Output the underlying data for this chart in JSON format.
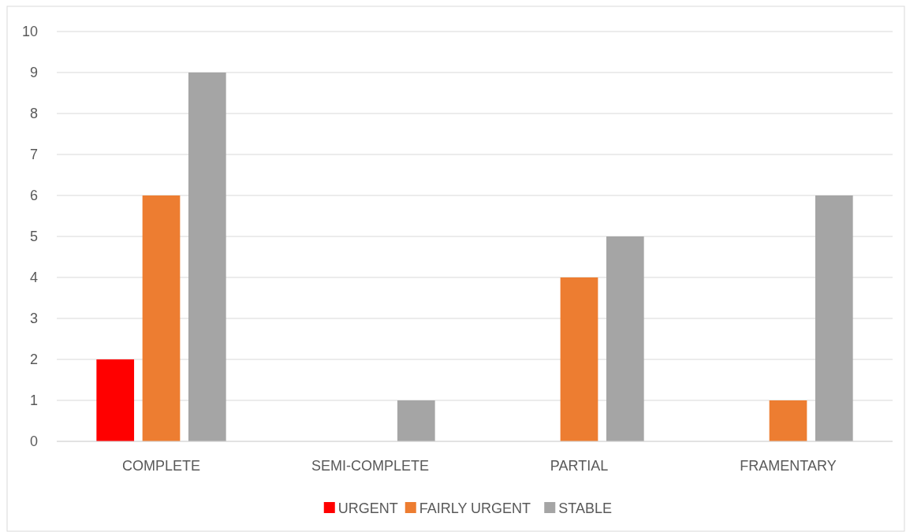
{
  "chart_data": {
    "type": "bar",
    "categories": [
      "COMPLETE",
      "SEMI-COMPLETE",
      "PARTIAL",
      "FRAMENTARY"
    ],
    "series": [
      {
        "name": "URGENT",
        "color": "#ff0000",
        "values": [
          2,
          0,
          0,
          0
        ]
      },
      {
        "name": "FAIRLY URGENT",
        "color": "#ed7d31",
        "values": [
          6,
          0,
          4,
          1
        ]
      },
      {
        "name": "STABLE",
        "color": "#a5a5a5",
        "values": [
          9,
          1,
          5,
          6
        ]
      }
    ],
    "ylim": [
      0,
      10
    ],
    "yticks": [
      0,
      1,
      2,
      3,
      4,
      5,
      6,
      7,
      8,
      9,
      10
    ],
    "grid": "y",
    "legend": "bottom"
  }
}
